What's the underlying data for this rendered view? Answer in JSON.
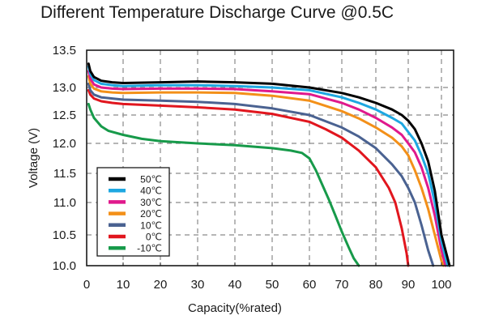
{
  "chart_data": {
    "type": "line",
    "title": "Different Temperature Discharge Curve @0.5C",
    "xlabel": "Capacity(%rated)",
    "ylabel": "Voltage (V)",
    "xlim": [
      0,
      103
    ],
    "ylim": [
      10.0,
      13.5
    ],
    "xticks": [
      0,
      10,
      20,
      30,
      40,
      50,
      60,
      70,
      80,
      90,
      100
    ],
    "yticks": [
      "10.0",
      "10.5",
      "11.0",
      "11.5",
      "12.0",
      "12.5",
      "13.0",
      "13.5"
    ],
    "grid": true,
    "legend_position": "bottom-left",
    "series": [
      {
        "name": "50℃",
        "color": "#000000",
        "x": [
          0.5,
          1,
          2,
          4,
          7,
          10,
          20,
          30,
          40,
          50,
          60,
          70,
          75,
          80,
          85,
          88,
          90,
          92,
          94,
          96,
          98,
          100,
          102
        ],
        "y": [
          13.32,
          13.22,
          13.14,
          13.09,
          13.07,
          13.06,
          13.07,
          13.08,
          13.07,
          13.05,
          13.0,
          12.9,
          12.82,
          12.72,
          12.6,
          12.5,
          12.4,
          12.25,
          12.0,
          11.7,
          11.2,
          10.5,
          10.0
        ]
      },
      {
        "name": "40℃",
        "color": "#1ea7e1",
        "x": [
          0.5,
          1,
          2,
          4,
          7,
          10,
          20,
          30,
          40,
          50,
          60,
          70,
          75,
          80,
          85,
          88,
          90,
          92,
          94,
          96,
          98,
          100,
          101.5
        ],
        "y": [
          13.28,
          13.18,
          13.1,
          13.05,
          13.03,
          13.02,
          13.03,
          13.03,
          13.02,
          13.0,
          12.95,
          12.82,
          12.72,
          12.6,
          12.45,
          12.35,
          12.2,
          12.05,
          11.8,
          11.5,
          11.0,
          10.4,
          10.0
        ]
      },
      {
        "name": "30℃",
        "color": "#e0198c",
        "x": [
          0.5,
          1,
          2,
          4,
          7,
          10,
          20,
          30,
          40,
          50,
          60,
          70,
          75,
          80,
          85,
          88,
          90,
          92,
          94,
          96,
          98,
          100,
          101
        ],
        "y": [
          13.22,
          13.12,
          13.04,
          13.0,
          12.98,
          12.97,
          12.98,
          12.98,
          12.97,
          12.93,
          12.88,
          12.72,
          12.6,
          12.45,
          12.28,
          12.15,
          12.0,
          11.85,
          11.6,
          11.25,
          10.8,
          10.25,
          10.0
        ]
      },
      {
        "name": "20℃",
        "color": "#f39019",
        "x": [
          0.5,
          1,
          2,
          4,
          7,
          10,
          20,
          30,
          40,
          50,
          60,
          70,
          75,
          80,
          85,
          88,
          90,
          92,
          94,
          96,
          98,
          100,
          100.5
        ],
        "y": [
          13.15,
          13.05,
          12.98,
          12.93,
          12.91,
          12.9,
          12.91,
          12.91,
          12.9,
          12.85,
          12.76,
          12.57,
          12.44,
          12.28,
          12.1,
          11.95,
          11.8,
          11.55,
          11.25,
          10.9,
          10.5,
          10.08,
          10.0
        ]
      },
      {
        "name": "10℃",
        "color": "#4a6291",
        "x": [
          0.5,
          1,
          2,
          4,
          7,
          10,
          20,
          30,
          40,
          50,
          60,
          70,
          75,
          80,
          85,
          88,
          90,
          92,
          94,
          96,
          97.5
        ],
        "y": [
          13.05,
          12.95,
          12.87,
          12.82,
          12.8,
          12.78,
          12.76,
          12.74,
          12.7,
          12.62,
          12.5,
          12.28,
          12.12,
          11.92,
          11.65,
          11.45,
          11.25,
          11.0,
          10.65,
          10.25,
          10.0
        ]
      },
      {
        "name": "0℃",
        "color": "#e1161e",
        "x": [
          0.5,
          1,
          2,
          4,
          7,
          10,
          20,
          30,
          40,
          50,
          60,
          65,
          70,
          75,
          80,
          84,
          86,
          88,
          89.5,
          90
        ],
        "y": [
          12.95,
          12.87,
          12.8,
          12.75,
          12.72,
          12.7,
          12.67,
          12.64,
          12.6,
          12.52,
          12.38,
          12.25,
          12.1,
          11.88,
          11.6,
          11.25,
          11.0,
          10.6,
          10.2,
          10.0
        ]
      },
      {
        "name": "-10℃",
        "color": "#179a4a",
        "x": [
          0.5,
          1,
          2,
          4,
          6,
          10,
          15,
          20,
          30,
          40,
          50,
          55,
          58,
          60,
          62,
          64,
          66,
          68,
          70,
          72,
          73.5,
          75
        ],
        "y": [
          12.7,
          12.6,
          12.45,
          12.3,
          12.22,
          12.15,
          12.08,
          12.04,
          12.0,
          11.97,
          11.92,
          11.88,
          11.84,
          11.75,
          11.55,
          11.3,
          11.05,
          10.8,
          10.55,
          10.3,
          10.12,
          10.0
        ]
      }
    ]
  }
}
